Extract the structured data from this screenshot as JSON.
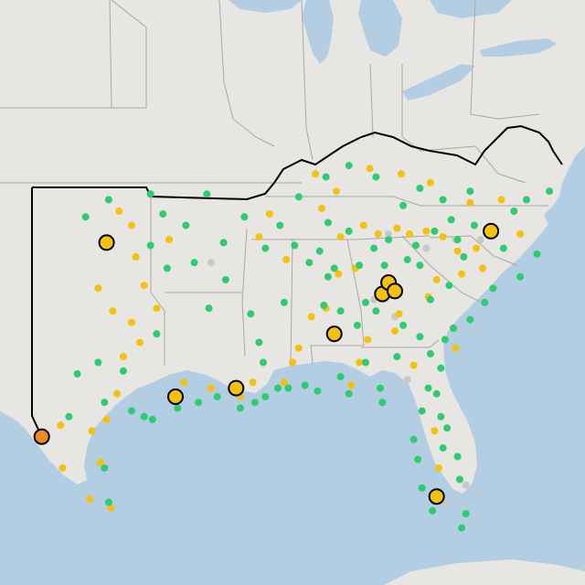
{
  "colors": {
    "water": "#b3cde3",
    "land": "#e8e6e2",
    "borders": "#a7a7a7",
    "region_outline": "#000000",
    "status_green": "#2ecc71",
    "status_yellow": "#f4c20d",
    "status_gray": "#c8c8c8",
    "status_orange": "#f08a24"
  },
  "markers": {
    "large": [
      {
        "status": "yellow",
        "lon": -97.4,
        "lat": 35.5
      },
      {
        "status": "yellow",
        "lon": -94.1,
        "lat": 30.1
      },
      {
        "status": "yellow",
        "lon": -91.2,
        "lat": 30.4
      },
      {
        "status": "yellow",
        "lon": -86.5,
        "lat": 32.3
      },
      {
        "status": "yellow",
        "lon": -84.2,
        "lat": 33.7
      },
      {
        "status": "yellow",
        "lon": -83.9,
        "lat": 34.1
      },
      {
        "status": "yellow",
        "lon": -83.6,
        "lat": 33.8
      },
      {
        "status": "yellow",
        "lon": -79.0,
        "lat": 35.9
      },
      {
        "status": "yellow",
        "lon": -81.6,
        "lat": 26.6
      },
      {
        "status": "orange",
        "lon": -100.5,
        "lat": 28.7
      }
    ],
    "small_green": [
      [
        -95.3,
        37.2
      ],
      [
        -92.6,
        37.2
      ],
      [
        -97.3,
        37.0
      ],
      [
        -98.4,
        36.4
      ],
      [
        -94.7,
        36.5
      ],
      [
        -95.3,
        35.4
      ],
      [
        -94.5,
        34.6
      ],
      [
        -95.0,
        32.3
      ],
      [
        -96.6,
        31.0
      ],
      [
        -97.8,
        31.3
      ],
      [
        -97.5,
        29.9
      ],
      [
        -96.2,
        29.6
      ],
      [
        -95.6,
        29.4
      ],
      [
        -95.2,
        29.3
      ],
      [
        -94.0,
        29.7
      ],
      [
        -93.0,
        29.9
      ],
      [
        -92.1,
        30.1
      ],
      [
        -91.0,
        29.7
      ],
      [
        -90.3,
        29.9
      ],
      [
        -89.8,
        30.1
      ],
      [
        -89.2,
        30.4
      ],
      [
        -88.7,
        30.4
      ],
      [
        -87.9,
        30.5
      ],
      [
        -87.3,
        30.3
      ],
      [
        -85.8,
        30.2
      ],
      [
        -92.5,
        33.2
      ],
      [
        -93.2,
        34.8
      ],
      [
        -91.7,
        34.2
      ],
      [
        -93.6,
        36.1
      ],
      [
        -91.8,
        35.5
      ],
      [
        -90.5,
        33.0
      ],
      [
        -90.1,
        32.0
      ],
      [
        -89.9,
        31.3
      ],
      [
        -88.9,
        33.4
      ],
      [
        -86.8,
        34.3
      ],
      [
        -87.7,
        34.8
      ],
      [
        -86.5,
        34.6
      ],
      [
        -87.0,
        33.3
      ],
      [
        -86.2,
        33.1
      ],
      [
        -85.4,
        32.6
      ],
      [
        -85.0,
        33.4
      ],
      [
        -85.3,
        34.7
      ],
      [
        -86.8,
        36.2
      ],
      [
        -87.2,
        35.2
      ],
      [
        -85.8,
        35.9
      ],
      [
        -84.6,
        35.3
      ],
      [
        -83.9,
        35.6
      ],
      [
        -82.6,
        35.4
      ],
      [
        -83.0,
        34.9
      ],
      [
        -84.1,
        34.7
      ],
      [
        -84.5,
        33.1
      ],
      [
        -83.2,
        32.6
      ],
      [
        -82.4,
        32.2
      ],
      [
        -81.9,
        31.6
      ],
      [
        -81.4,
        31.1
      ],
      [
        -81.2,
        32.1
      ],
      [
        -80.8,
        32.5
      ],
      [
        -80.0,
        32.8
      ],
      [
        -79.3,
        33.4
      ],
      [
        -78.9,
        33.9
      ],
      [
        -81.0,
        34.0
      ],
      [
        -82.4,
        34.7
      ],
      [
        -81.9,
        33.5
      ],
      [
        -80.3,
        35.0
      ],
      [
        -80.6,
        35.6
      ],
      [
        -80.9,
        36.3
      ],
      [
        -81.7,
        35.9
      ],
      [
        -79.8,
        36.1
      ],
      [
        -78.4,
        35.3
      ],
      [
        -77.6,
        34.3
      ],
      [
        -76.8,
        35.1
      ],
      [
        -77.9,
        36.6
      ],
      [
        -77.3,
        37.0
      ],
      [
        -76.2,
        37.3
      ],
      [
        -80.0,
        37.3
      ],
      [
        -81.3,
        37.0
      ],
      [
        -82.4,
        37.4
      ],
      [
        -83.2,
        36.8
      ],
      [
        -84.5,
        37.8
      ],
      [
        -85.8,
        38.2
      ],
      [
        -86.9,
        37.8
      ],
      [
        -88.2,
        37.1
      ],
      [
        -88.4,
        35.4
      ],
      [
        -89.1,
        36.1
      ],
      [
        -89.8,
        35.3
      ],
      [
        -90.8,
        36.4
      ],
      [
        -82.0,
        30.4
      ],
      [
        -81.6,
        30.2
      ],
      [
        -81.4,
        29.4
      ],
      [
        -81.1,
        29.0
      ],
      [
        -82.3,
        29.6
      ],
      [
        -82.7,
        28.6
      ],
      [
        -82.5,
        27.9
      ],
      [
        -81.3,
        28.3
      ],
      [
        -80.6,
        28.0
      ],
      [
        -80.5,
        27.2
      ],
      [
        -80.2,
        26.0
      ],
      [
        -80.4,
        25.5
      ],
      [
        -81.8,
        26.1
      ],
      [
        -82.3,
        26.9
      ],
      [
        -84.3,
        30.4
      ],
      [
        -86.2,
        30.8
      ],
      [
        -85.0,
        31.3
      ],
      [
        -83.5,
        31.5
      ],
      [
        -84.2,
        29.9
      ],
      [
        -97.5,
        27.6
      ],
      [
        -97.3,
        26.4
      ],
      [
        -99.2,
        29.4
      ],
      [
        -98.8,
        30.9
      ]
    ],
    "small_yellow": [
      [
        -96.8,
        36.6
      ],
      [
        -96.2,
        36.1
      ],
      [
        -96.0,
        35.0
      ],
      [
        -95.6,
        34.0
      ],
      [
        -95.0,
        33.2
      ],
      [
        -97.8,
        33.9
      ],
      [
        -97.1,
        33.1
      ],
      [
        -96.2,
        32.7
      ],
      [
        -95.8,
        32.0
      ],
      [
        -96.6,
        31.5
      ],
      [
        -96.9,
        30.2
      ],
      [
        -97.4,
        29.3
      ],
      [
        -98.1,
        28.9
      ],
      [
        -97.7,
        27.8
      ],
      [
        -97.2,
        26.2
      ],
      [
        -98.2,
        26.5
      ],
      [
        -99.5,
        27.6
      ],
      [
        -99.6,
        29.1
      ],
      [
        -94.4,
        35.6
      ],
      [
        -93.7,
        30.6
      ],
      [
        -92.4,
        30.4
      ],
      [
        -91.0,
        30.1
      ],
      [
        -90.4,
        30.6
      ],
      [
        -88.9,
        30.6
      ],
      [
        -88.5,
        31.3
      ],
      [
        -87.6,
        32.9
      ],
      [
        -86.9,
        33.2
      ],
      [
        -86.3,
        34.4
      ],
      [
        -85.5,
        34.6
      ],
      [
        -86.2,
        35.7
      ],
      [
        -85.1,
        36.1
      ],
      [
        -84.4,
        35.8
      ],
      [
        -83.5,
        36.0
      ],
      [
        -82.9,
        35.8
      ],
      [
        -82.1,
        35.9
      ],
      [
        -81.3,
        35.7
      ],
      [
        -80.6,
        35.2
      ],
      [
        -79.7,
        35.3
      ],
      [
        -79.4,
        34.6
      ],
      [
        -80.4,
        34.4
      ],
      [
        -81.6,
        34.2
      ],
      [
        -82.0,
        33.6
      ],
      [
        -83.4,
        33.0
      ],
      [
        -83.6,
        32.4
      ],
      [
        -84.9,
        32.1
      ],
      [
        -87.4,
        37.9
      ],
      [
        -86.4,
        37.3
      ],
      [
        -84.8,
        38.1
      ],
      [
        -83.3,
        37.9
      ],
      [
        -81.9,
        37.6
      ],
      [
        -80.0,
        36.9
      ],
      [
        -78.5,
        37.0
      ],
      [
        -77.6,
        35.8
      ],
      [
        -88.8,
        34.9
      ],
      [
        -89.6,
        36.5
      ],
      [
        -90.1,
        35.7
      ],
      [
        -87.1,
        36.7
      ],
      [
        -85.3,
        31.3
      ],
      [
        -85.7,
        30.5
      ],
      [
        -81.7,
        28.9
      ],
      [
        -81.5,
        27.6
      ],
      [
        -80.7,
        31.8
      ],
      [
        -82.7,
        31.2
      ],
      [
        -88.2,
        31.8
      ]
    ],
    "small_gray": [
      [
        -83.9,
        35.8
      ],
      [
        -82.1,
        35.3
      ],
      [
        -80.7,
        35.6
      ],
      [
        -79.5,
        35.6
      ],
      [
        -84.6,
        33.5
      ],
      [
        -83.6,
        32.9
      ],
      [
        -83.0,
        30.7
      ],
      [
        -81.2,
        26.4
      ],
      [
        -80.2,
        27.0
      ],
      [
        -92.4,
        34.8
      ]
    ]
  }
}
